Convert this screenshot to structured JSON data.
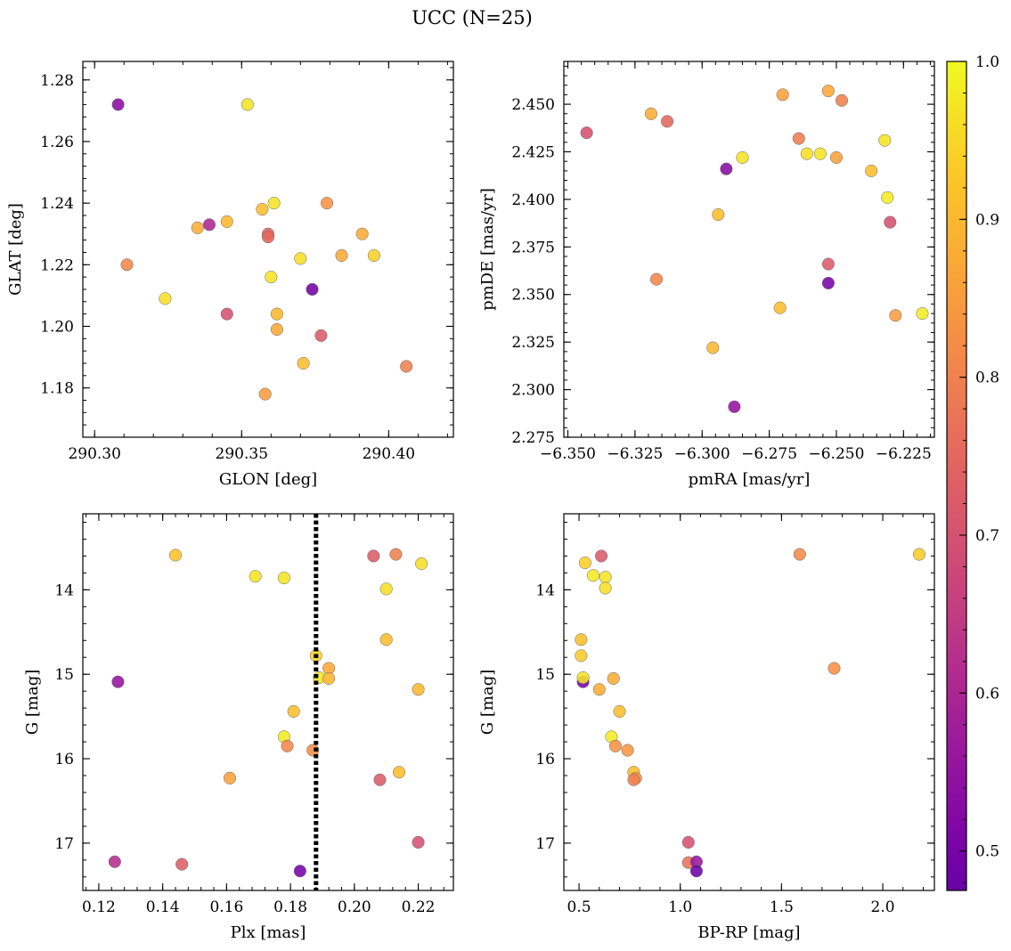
{
  "chart_data": {
    "title": "UCC (N=25)",
    "type": "scatter",
    "colorbar": {
      "ticks": [
        0.5,
        0.6,
        0.7,
        0.8,
        0.9,
        1.0
      ],
      "tick_labels": [
        "0.5",
        "0.6",
        "0.7",
        "0.8",
        "0.9",
        "1.0"
      ],
      "range": [
        0.475,
        1.0
      ]
    },
    "panels": [
      {
        "id": "glon-glat",
        "xlabel": "GLON [deg]",
        "ylabel": "GLAT [deg]",
        "xlim": [
          290.296,
          290.422
        ],
        "ylim": [
          1.164,
          1.286
        ],
        "invert_y": false,
        "xticks": [
          290.3,
          290.35,
          290.4
        ],
        "xtick_labels": [
          "290.30",
          "290.35",
          "290.40"
        ],
        "yticks": [
          1.18,
          1.2,
          1.22,
          1.24,
          1.26,
          1.28
        ],
        "ytick_labels": [
          "1.18",
          "1.20",
          "1.22",
          "1.24",
          "1.26",
          "1.28"
        ],
        "points": [
          {
            "x": 290.308,
            "y": 1.272,
            "c": 0.53
          },
          {
            "x": 290.352,
            "y": 1.272,
            "c": 0.97
          },
          {
            "x": 290.311,
            "y": 1.22,
            "c": 0.81
          },
          {
            "x": 290.324,
            "y": 1.209,
            "c": 0.96
          },
          {
            "x": 290.335,
            "y": 1.232,
            "c": 0.88
          },
          {
            "x": 290.339,
            "y": 1.233,
            "c": 0.6
          },
          {
            "x": 290.345,
            "y": 1.234,
            "c": 0.9
          },
          {
            "x": 290.345,
            "y": 1.204,
            "c": 0.7
          },
          {
            "x": 290.357,
            "y": 1.238,
            "c": 0.91
          },
          {
            "x": 290.358,
            "y": 1.178,
            "c": 0.85
          },
          {
            "x": 290.359,
            "y": 1.23,
            "c": 0.74
          },
          {
            "x": 290.359,
            "y": 1.229,
            "c": 0.75
          },
          {
            "x": 290.36,
            "y": 1.216,
            "c": 0.97
          },
          {
            "x": 290.361,
            "y": 1.24,
            "c": 0.97
          },
          {
            "x": 290.362,
            "y": 1.204,
            "c": 0.9
          },
          {
            "x": 290.362,
            "y": 1.199,
            "c": 0.87
          },
          {
            "x": 290.37,
            "y": 1.222,
            "c": 0.96
          },
          {
            "x": 290.371,
            "y": 1.188,
            "c": 0.91
          },
          {
            "x": 290.374,
            "y": 1.212,
            "c": 0.49
          },
          {
            "x": 290.377,
            "y": 1.197,
            "c": 0.72
          },
          {
            "x": 290.379,
            "y": 1.24,
            "c": 0.83
          },
          {
            "x": 290.384,
            "y": 1.223,
            "c": 0.87
          },
          {
            "x": 290.391,
            "y": 1.23,
            "c": 0.88
          },
          {
            "x": 290.395,
            "y": 1.223,
            "c": 0.94
          },
          {
            "x": 290.406,
            "y": 1.187,
            "c": 0.8
          }
        ]
      },
      {
        "id": "pmra-pmde",
        "xlabel": "pmRA [mas/yr]",
        "ylabel": "pmDE [mas/yr]",
        "xlim": [
          -6.3515,
          -6.2135
        ],
        "ylim": [
          2.275,
          2.4725
        ],
        "invert_y": false,
        "xticks": [
          -6.35,
          -6.325,
          -6.3,
          -6.275,
          -6.25,
          -6.225
        ],
        "xtick_labels": [
          "−6.350",
          "−6.325",
          "−6.300",
          "−6.275",
          "−6.250",
          "−6.225"
        ],
        "yticks": [
          2.275,
          2.3,
          2.325,
          2.35,
          2.375,
          2.4,
          2.425,
          2.45
        ],
        "ytick_labels": [
          "2.275",
          "2.300",
          "2.325",
          "2.350",
          "2.375",
          "2.400",
          "2.425",
          "2.450"
        ],
        "points": [
          {
            "x": -6.343,
            "y": 2.435,
            "c": 0.7
          },
          {
            "x": -6.319,
            "y": 2.445,
            "c": 0.88
          },
          {
            "x": -6.313,
            "y": 2.441,
            "c": 0.75
          },
          {
            "x": -6.317,
            "y": 2.358,
            "c": 0.81
          },
          {
            "x": -6.296,
            "y": 2.322,
            "c": 0.9
          },
          {
            "x": -6.294,
            "y": 2.392,
            "c": 0.91
          },
          {
            "x": -6.291,
            "y": 2.416,
            "c": 0.53
          },
          {
            "x": -6.288,
            "y": 2.291,
            "c": 0.55
          },
          {
            "x": -6.285,
            "y": 2.422,
            "c": 0.97
          },
          {
            "x": -6.271,
            "y": 2.343,
            "c": 0.91
          },
          {
            "x": -6.27,
            "y": 2.455,
            "c": 0.86
          },
          {
            "x": -6.264,
            "y": 2.432,
            "c": 0.79
          },
          {
            "x": -6.261,
            "y": 2.424,
            "c": 0.96
          },
          {
            "x": -6.256,
            "y": 2.424,
            "c": 0.97
          },
          {
            "x": -6.253,
            "y": 2.366,
            "c": 0.72
          },
          {
            "x": -6.253,
            "y": 2.356,
            "c": 0.5
          },
          {
            "x": -6.253,
            "y": 2.457,
            "c": 0.87
          },
          {
            "x": -6.25,
            "y": 2.422,
            "c": 0.86
          },
          {
            "x": -6.248,
            "y": 2.452,
            "c": 0.8
          },
          {
            "x": -6.237,
            "y": 2.415,
            "c": 0.91
          },
          {
            "x": -6.232,
            "y": 2.431,
            "c": 0.97
          },
          {
            "x": -6.231,
            "y": 2.401,
            "c": 0.98
          },
          {
            "x": -6.23,
            "y": 2.388,
            "c": 0.7
          },
          {
            "x": -6.228,
            "y": 2.339,
            "c": 0.85
          },
          {
            "x": -6.218,
            "y": 2.34,
            "c": 0.98
          }
        ]
      },
      {
        "id": "plx-g",
        "xlabel": "Plx [mas]",
        "ylabel": "G [mag]",
        "xlim": [
          0.115,
          0.231
        ],
        "ylim": [
          13.1,
          17.56
        ],
        "invert_y": true,
        "xticks": [
          0.12,
          0.14,
          0.16,
          0.18,
          0.2,
          0.22
        ],
        "xtick_labels": [
          "0.12",
          "0.14",
          "0.16",
          "0.18",
          "0.20",
          "0.22"
        ],
        "yticks": [
          14,
          15,
          16,
          17
        ],
        "ytick_labels": [
          "14",
          "15",
          "16",
          "17"
        ],
        "vline": {
          "x": 0.188,
          "style": "dotted",
          "color": "#000000"
        },
        "points": [
          {
            "x": 0.144,
            "y": 13.59,
            "c": 0.92
          },
          {
            "x": 0.169,
            "y": 13.84,
            "c": 0.97
          },
          {
            "x": 0.178,
            "y": 13.86,
            "c": 0.97
          },
          {
            "x": 0.206,
            "y": 13.6,
            "c": 0.72
          },
          {
            "x": 0.213,
            "y": 13.58,
            "c": 0.8
          },
          {
            "x": 0.221,
            "y": 13.69,
            "c": 0.96
          },
          {
            "x": 0.21,
            "y": 13.99,
            "c": 0.96
          },
          {
            "x": 0.21,
            "y": 14.59,
            "c": 0.91
          },
          {
            "x": 0.188,
            "y": 14.78,
            "c": 0.94
          },
          {
            "x": 0.192,
            "y": 14.93,
            "c": 0.87
          },
          {
            "x": 0.189,
            "y": 15.04,
            "c": 0.97
          },
          {
            "x": 0.192,
            "y": 15.05,
            "c": 0.9
          },
          {
            "x": 0.126,
            "y": 15.09,
            "c": 0.55
          },
          {
            "x": 0.22,
            "y": 15.18,
            "c": 0.9
          },
          {
            "x": 0.181,
            "y": 15.44,
            "c": 0.91
          },
          {
            "x": 0.178,
            "y": 15.74,
            "c": 0.98
          },
          {
            "x": 0.179,
            "y": 15.85,
            "c": 0.81
          },
          {
            "x": 0.187,
            "y": 15.9,
            "c": 0.82
          },
          {
            "x": 0.214,
            "y": 16.16,
            "c": 0.91
          },
          {
            "x": 0.161,
            "y": 16.23,
            "c": 0.86
          },
          {
            "x": 0.208,
            "y": 16.25,
            "c": 0.72
          },
          {
            "x": 0.22,
            "y": 16.99,
            "c": 0.7
          },
          {
            "x": 0.125,
            "y": 17.22,
            "c": 0.62
          },
          {
            "x": 0.146,
            "y": 17.25,
            "c": 0.73
          },
          {
            "x": 0.183,
            "y": 17.33,
            "c": 0.5
          }
        ]
      },
      {
        "id": "bprp-g",
        "xlabel": "BP-RP [mag]",
        "ylabel": "G [mag]",
        "xlim": [
          0.425,
          2.255
        ],
        "ylim": [
          13.1,
          17.56
        ],
        "invert_y": true,
        "xticks": [
          0.5,
          1.0,
          1.5,
          2.0
        ],
        "xtick_labels": [
          "0.5",
          "1.0",
          "1.5",
          "2.0"
        ],
        "yticks": [
          14,
          15,
          16,
          17
        ],
        "ytick_labels": [
          "14",
          "15",
          "16",
          "17"
        ],
        "points": [
          {
            "x": 0.53,
            "y": 13.68,
            "c": 0.94
          },
          {
            "x": 0.57,
            "y": 13.83,
            "c": 0.98
          },
          {
            "x": 0.61,
            "y": 13.6,
            "c": 0.72
          },
          {
            "x": 0.63,
            "y": 13.85,
            "c": 0.97
          },
          {
            "x": 0.63,
            "y": 13.98,
            "c": 0.96
          },
          {
            "x": 0.51,
            "y": 14.59,
            "c": 0.91
          },
          {
            "x": 0.51,
            "y": 14.78,
            "c": 0.93
          },
          {
            "x": 0.52,
            "y": 15.09,
            "c": 0.5
          },
          {
            "x": 0.52,
            "y": 15.04,
            "c": 0.97
          },
          {
            "x": 0.6,
            "y": 15.18,
            "c": 0.88
          },
          {
            "x": 0.67,
            "y": 15.05,
            "c": 0.88
          },
          {
            "x": 0.7,
            "y": 15.44,
            "c": 0.91
          },
          {
            "x": 0.66,
            "y": 15.74,
            "c": 0.98
          },
          {
            "x": 0.68,
            "y": 15.85,
            "c": 0.83
          },
          {
            "x": 0.74,
            "y": 15.9,
            "c": 0.84
          },
          {
            "x": 0.77,
            "y": 16.16,
            "c": 0.91
          },
          {
            "x": 0.78,
            "y": 16.23,
            "c": 0.84
          },
          {
            "x": 0.77,
            "y": 16.25,
            "c": 0.8
          },
          {
            "x": 1.59,
            "y": 13.58,
            "c": 0.82
          },
          {
            "x": 2.18,
            "y": 13.58,
            "c": 0.93
          },
          {
            "x": 1.76,
            "y": 14.93,
            "c": 0.83
          },
          {
            "x": 1.04,
            "y": 16.99,
            "c": 0.7
          },
          {
            "x": 1.04,
            "y": 17.23,
            "c": 0.77
          },
          {
            "x": 1.08,
            "y": 17.22,
            "c": 0.56
          },
          {
            "x": 1.08,
            "y": 17.33,
            "c": 0.48
          }
        ]
      }
    ]
  }
}
